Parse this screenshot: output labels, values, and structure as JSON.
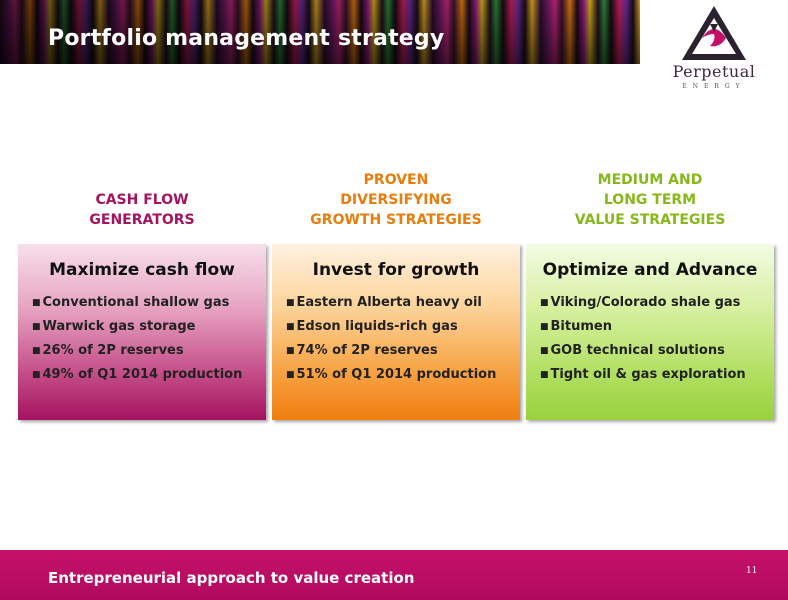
{
  "slide": {
    "title": "Portfolio management strategy"
  },
  "logo": {
    "name": "Perpetual",
    "sub": "ENERGY"
  },
  "columns": [
    {
      "heading": [
        "CASH FLOW",
        "GENERATORS"
      ],
      "box_title": "Maximize cash flow",
      "bullets": [
        "Conventional shallow gas",
        "Warwick gas storage",
        "26% of 2P reserves",
        "49% of Q1 2014 production"
      ]
    },
    {
      "heading": [
        "PROVEN",
        "DIVERSIFYING",
        "GROWTH STRATEGIES"
      ],
      "box_title": "Invest for growth",
      "bullets": [
        "Eastern Alberta heavy oil",
        "Edson liquids-rich gas",
        "74% of 2P reserves",
        "51% of Q1 2014 production"
      ]
    },
    {
      "heading": [
        "MEDIUM AND",
        "LONG TERM",
        "VALUE STRATEGIES"
      ],
      "box_title": "Optimize and Advance",
      "bullets": [
        "Viking/Colorado shale gas",
        "Bitumen",
        "GOB technical solutions",
        "Tight oil & gas exploration"
      ]
    }
  ],
  "colors": {
    "magenta": "#a4135f",
    "orange": "#e87d0c",
    "green": "#86b817",
    "footer": "#c6106a"
  },
  "footer": {
    "text": "Entrepreneurial approach to value creation",
    "page_number": "11"
  }
}
